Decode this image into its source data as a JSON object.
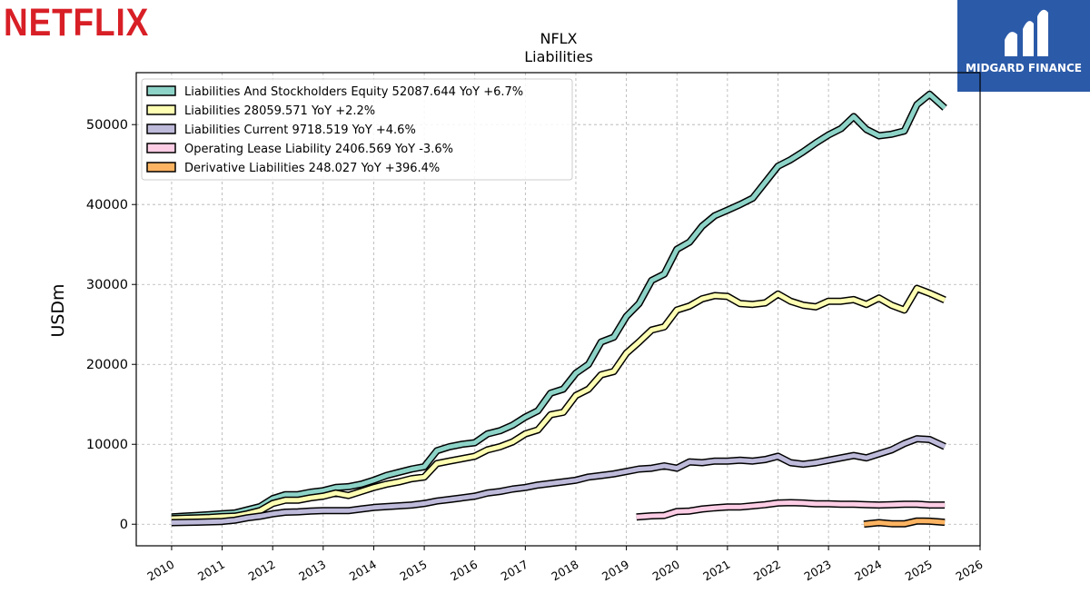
{
  "brand": {
    "left_logo": "NETFLIX",
    "right_logo": "MIDGARD FINANCE",
    "right_logo_color": "#2b5aa8",
    "left_logo_color": "#d81f26"
  },
  "chart_data": {
    "type": "line",
    "title": "NFLX",
    "subtitle": "Liabilities",
    "xlabel": "",
    "ylabel": "USDm",
    "xlim": [
      2009.3,
      2026.0
    ],
    "ylim": [
      -2700,
      56500
    ],
    "x_ticks": [
      "2010",
      "2011",
      "2012",
      "2013",
      "2014",
      "2015",
      "2016",
      "2017",
      "2018",
      "2019",
      "2020",
      "2021",
      "2022",
      "2023",
      "2024",
      "2025",
      "2026"
    ],
    "y_ticks": [
      "0",
      "10000",
      "20000",
      "30000",
      "40000",
      "50000"
    ],
    "grid": true,
    "legend_position": "top-left",
    "series": [
      {
        "name": "Liabilities And Stockholders Equity",
        "legend": "Liabilities And Stockholders Equity  52087.644 YoY +6.7%",
        "color": "#8dd3c7",
        "x": [
          2010.0,
          2010.25,
          2010.5,
          2010.75,
          2011.0,
          2011.25,
          2011.5,
          2011.75,
          2012.0,
          2012.25,
          2012.5,
          2012.75,
          2013.0,
          2013.25,
          2013.5,
          2013.75,
          2014.0,
          2014.25,
          2014.5,
          2014.75,
          2015.0,
          2015.25,
          2015.5,
          2015.75,
          2016.0,
          2016.25,
          2016.5,
          2016.75,
          2017.0,
          2017.25,
          2017.5,
          2017.75,
          2018.0,
          2018.25,
          2018.5,
          2018.75,
          2019.0,
          2019.25,
          2019.5,
          2019.75,
          2020.0,
          2020.25,
          2020.5,
          2020.75,
          2021.0,
          2021.25,
          2021.5,
          2021.75,
          2022.0,
          2022.25,
          2022.5,
          2022.75,
          2023.0,
          2023.25,
          2023.5,
          2023.75,
          2024.0,
          2024.25,
          2024.5,
          2024.75,
          2025.0,
          2025.3
        ],
        "y": [
          900,
          1000,
          1100,
          1200,
          1300,
          1400,
          1800,
          2200,
          3200,
          3700,
          3700,
          4000,
          4200,
          4600,
          4700,
          5000,
          5500,
          6100,
          6500,
          6900,
          7200,
          9200,
          9700,
          10000,
          10200,
          11300,
          11700,
          12400,
          13400,
          14200,
          16400,
          16900,
          18900,
          20000,
          22800,
          23400,
          26000,
          27600,
          30500,
          31300,
          34400,
          35300,
          37300,
          38600,
          39300,
          40000,
          40800,
          42800,
          44800,
          45600,
          46600,
          47700,
          48700,
          49500,
          51000,
          49400,
          48600,
          48800,
          49200,
          52500,
          53800,
          52088
        ]
      },
      {
        "name": "Liabilities",
        "legend": "Liabilities  28059.571 YoY +2.2%",
        "color": "#ffffb3",
        "x": [
          2010.0,
          2010.25,
          2010.5,
          2010.75,
          2011.0,
          2011.25,
          2011.5,
          2011.75,
          2012.0,
          2012.25,
          2012.5,
          2012.75,
          2013.0,
          2013.25,
          2013.5,
          2013.75,
          2014.0,
          2014.25,
          2014.5,
          2014.75,
          2015.0,
          2015.25,
          2015.5,
          2015.75,
          2016.0,
          2016.25,
          2016.5,
          2016.75,
          2017.0,
          2017.25,
          2017.5,
          2017.75,
          2018.0,
          2018.25,
          2018.5,
          2018.75,
          2019.0,
          2019.25,
          2019.5,
          2019.75,
          2020.0,
          2020.25,
          2020.5,
          2020.75,
          2021.0,
          2021.25,
          2021.5,
          2021.75,
          2022.0,
          2022.25,
          2022.5,
          2022.75,
          2023.0,
          2023.25,
          2023.5,
          2023.75,
          2024.0,
          2024.25,
          2024.5,
          2024.75,
          2025.0,
          2025.3
        ],
        "y": [
          700,
          750,
          800,
          850,
          950,
          1000,
          1300,
          1700,
          2600,
          3000,
          3000,
          3300,
          3500,
          3900,
          3600,
          4100,
          4600,
          5000,
          5300,
          5700,
          5900,
          7600,
          7900,
          8200,
          8500,
          9300,
          9700,
          10300,
          11300,
          11800,
          13700,
          14000,
          16100,
          16900,
          18700,
          19100,
          21400,
          22800,
          24300,
          24700,
          26800,
          27300,
          28200,
          28600,
          28500,
          27600,
          27500,
          27700,
          28800,
          27900,
          27400,
          27200,
          27900,
          27900,
          28100,
          27500,
          28300,
          27400,
          26800,
          29500,
          28900,
          28060
        ]
      },
      {
        "name": "Liabilities Current",
        "legend": "Liabilities Current  9718.519 YoY +4.6%",
        "color": "#bebada",
        "x": [
          2010.0,
          2010.25,
          2010.5,
          2010.75,
          2011.0,
          2011.25,
          2011.5,
          2011.75,
          2012.0,
          2012.25,
          2012.5,
          2012.75,
          2013.0,
          2013.25,
          2013.5,
          2013.75,
          2014.0,
          2014.25,
          2014.5,
          2014.75,
          2015.0,
          2015.25,
          2015.5,
          2015.75,
          2016.0,
          2016.25,
          2016.5,
          2016.75,
          2017.0,
          2017.25,
          2017.5,
          2017.75,
          2018.0,
          2018.25,
          2018.5,
          2018.75,
          2019.0,
          2019.25,
          2019.5,
          2019.75,
          2020.0,
          2020.25,
          2020.5,
          2020.75,
          2021.0,
          2021.25,
          2021.5,
          2021.75,
          2022.0,
          2022.25,
          2022.5,
          2022.75,
          2023.0,
          2023.25,
          2023.5,
          2023.75,
          2024.0,
          2024.25,
          2024.5,
          2024.75,
          2025.0,
          2025.3
        ],
        "y": [
          200,
          230,
          260,
          300,
          350,
          500,
          800,
          1000,
          1300,
          1500,
          1550,
          1650,
          1700,
          1700,
          1700,
          1900,
          2100,
          2200,
          2300,
          2400,
          2600,
          2900,
          3100,
          3300,
          3500,
          3900,
          4100,
          4400,
          4600,
          4900,
          5100,
          5300,
          5500,
          5900,
          6100,
          6300,
          6600,
          6900,
          7000,
          7300,
          7000,
          7800,
          7700,
          7900,
          7900,
          8000,
          7900,
          8100,
          8500,
          7700,
          7500,
          7700,
          8000,
          8300,
          8600,
          8300,
          8800,
          9300,
          10100,
          10700,
          10600,
          9719
        ]
      },
      {
        "name": "Operating Lease Liability",
        "legend": "Operating Lease Liability  2406.569 YoY -3.6%",
        "color": "#fccde5",
        "x": [
          2019.2,
          2019.5,
          2019.75,
          2020.0,
          2020.25,
          2020.5,
          2020.75,
          2021.0,
          2021.25,
          2021.5,
          2021.75,
          2022.0,
          2022.25,
          2022.5,
          2022.75,
          2023.0,
          2023.25,
          2023.5,
          2023.75,
          2024.0,
          2024.25,
          2024.5,
          2024.75,
          2025.0,
          2025.3
        ],
        "y": [
          900,
          1050,
          1100,
          1600,
          1650,
          1900,
          2050,
          2150,
          2150,
          2300,
          2450,
          2650,
          2700,
          2650,
          2550,
          2550,
          2500,
          2500,
          2450,
          2400,
          2450,
          2500,
          2500,
          2400,
          2407
        ]
      },
      {
        "name": "Derivative Liabilities",
        "legend": "Derivative Liabilities  248.027 YoY +396.4%",
        "color": "#fdb462",
        "x": [
          2023.7,
          2024.0,
          2024.25,
          2024.5,
          2024.75,
          2025.0,
          2025.3
        ],
        "y": [
          0,
          200,
          60,
          50,
          400,
          380,
          248
        ]
      }
    ]
  }
}
